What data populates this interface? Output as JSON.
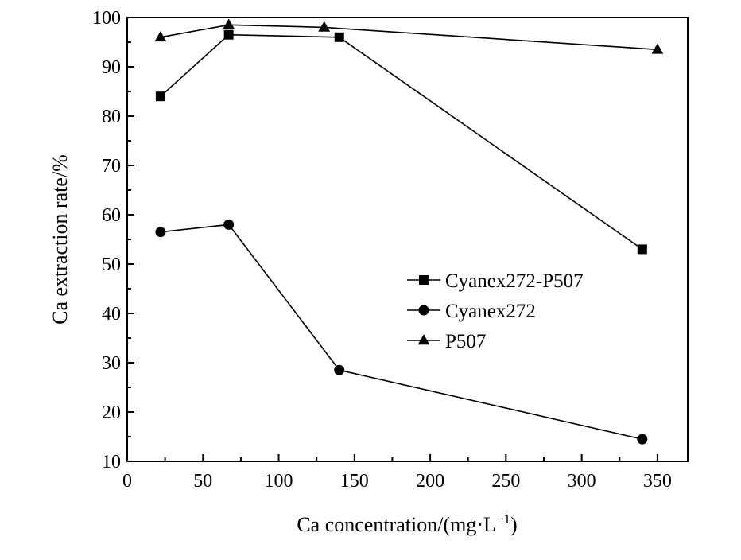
{
  "chart_data": {
    "type": "line",
    "title": "",
    "xlabel": "Ca concentration/(mg·L",
    "xlabel_sup": "−1",
    "xlabel_tail": ")",
    "ylabel": "Ca extraction rate/%",
    "xlim": [
      0,
      370
    ],
    "ylim": [
      10,
      100
    ],
    "x_ticks": [
      0,
      50,
      100,
      150,
      200,
      250,
      300,
      350
    ],
    "y_ticks": [
      10,
      20,
      30,
      40,
      50,
      60,
      70,
      80,
      90,
      100
    ],
    "grid": false,
    "legend_position": "center-right",
    "series": [
      {
        "name": "Cyanex272-P507",
        "marker": "square",
        "x": [
          22,
          67,
          140,
          340
        ],
        "y": [
          84,
          96.5,
          96,
          53
        ]
      },
      {
        "name": "Cyanex272",
        "marker": "circle",
        "x": [
          22,
          67,
          140,
          340
        ],
        "y": [
          56.5,
          58,
          28.5,
          14.5
        ]
      },
      {
        "name": "P507",
        "marker": "triangle",
        "x": [
          22,
          67,
          130,
          350
        ],
        "y": [
          96,
          98.5,
          98,
          93.5
        ]
      }
    ]
  }
}
